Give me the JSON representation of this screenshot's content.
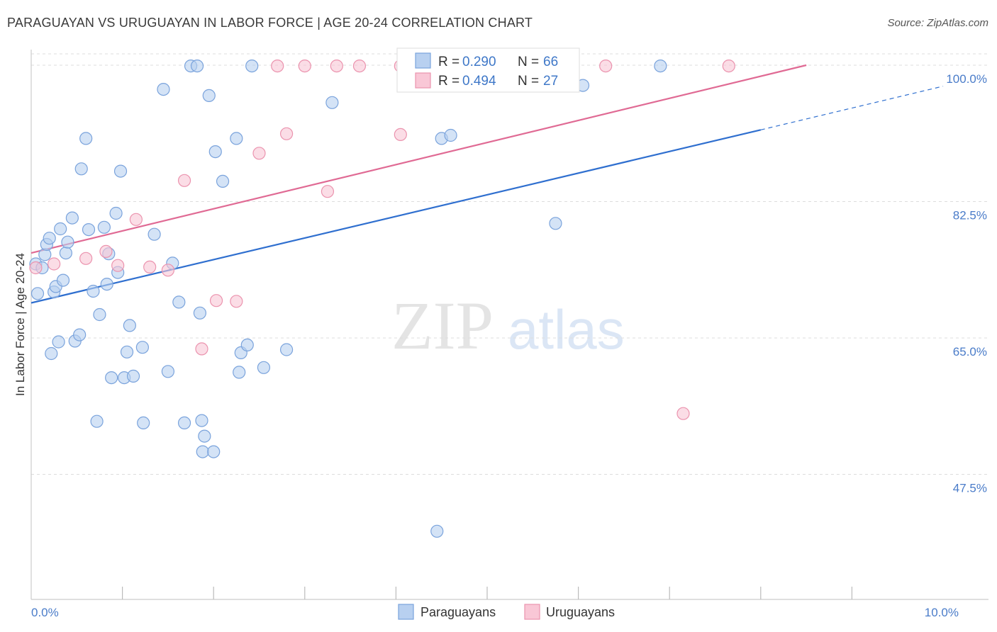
{
  "title": "PARAGUAYAN VS URUGUAYAN IN LABOR FORCE | AGE 20-24 CORRELATION CHART",
  "source": "Source: ZipAtlas.com",
  "watermark": {
    "zip": "ZIP",
    "atlas": "atlas"
  },
  "colors": {
    "blue_fill": "#b8d0f0",
    "blue_stroke": "#7aa3dc",
    "blue_line": "#2f6fcf",
    "pink_fill": "#f9c7d6",
    "pink_stroke": "#eb93ae",
    "pink_line": "#e06a94",
    "grid": "#dddddd",
    "axis_label": "#4a7cc9"
  },
  "legend": {
    "rows": [
      {
        "r_label": "R = ",
        "r_value": "0.290",
        "n_label": "N = ",
        "n_value": "66",
        "series": "Paraguayans"
      },
      {
        "r_label": "R = ",
        "r_value": "0.494",
        "n_label": "N = ",
        "n_value": "27",
        "series": "Uruguayans"
      }
    ]
  },
  "chart_data": {
    "type": "scatter",
    "title": "PARAGUAYAN VS URUGUAYAN IN LABOR FORCE | AGE 20-24 CORRELATION CHART",
    "xlabel": "",
    "ylabel": "In Labor Force | Age 20-24",
    "xlim": [
      0.0,
      10.0
    ],
    "ylim": [
      32.0,
      102.0
    ],
    "x_tick_labels": [
      "0.0%",
      "10.0%"
    ],
    "x_tick_label_values": [
      0.0,
      10.0
    ],
    "y_ticks": [
      47.5,
      65.0,
      82.5,
      100.0
    ],
    "y_tick_labels": [
      "47.5%",
      "65.0%",
      "82.5%",
      "100.0%"
    ],
    "x_minor_ticks": [
      1,
      2,
      3,
      4,
      5,
      6,
      7,
      8,
      9
    ],
    "series": [
      {
        "name": "Paraguayans",
        "color": "blue",
        "trend": {
          "x0": 0.0,
          "y0": 69.5,
          "x1": 8.0,
          "y1": 91.7,
          "dash_x1": 10.0,
          "dash_y1": 97.3
        },
        "points": [
          [
            0.05,
            74.5
          ],
          [
            0.07,
            70.7
          ],
          [
            0.12,
            74.0
          ],
          [
            0.15,
            75.7
          ],
          [
            0.17,
            77.0
          ],
          [
            0.2,
            77.8
          ],
          [
            0.22,
            63.0
          ],
          [
            0.25,
            70.9
          ],
          [
            0.27,
            71.6
          ],
          [
            0.3,
            64.5
          ],
          [
            0.32,
            79.0
          ],
          [
            0.35,
            72.4
          ],
          [
            0.38,
            75.9
          ],
          [
            0.4,
            77.3
          ],
          [
            0.45,
            80.4
          ],
          [
            0.48,
            64.6
          ],
          [
            0.53,
            65.4
          ],
          [
            0.55,
            86.7
          ],
          [
            0.6,
            90.6
          ],
          [
            0.63,
            78.9
          ],
          [
            0.68,
            71.0
          ],
          [
            0.72,
            54.3
          ],
          [
            0.75,
            68.0
          ],
          [
            0.8,
            79.2
          ],
          [
            0.83,
            71.9
          ],
          [
            0.85,
            75.8
          ],
          [
            0.88,
            59.9
          ],
          [
            0.93,
            81.0
          ],
          [
            0.95,
            73.4
          ],
          [
            0.98,
            86.4
          ],
          [
            1.02,
            59.9
          ],
          [
            1.05,
            63.2
          ],
          [
            1.08,
            66.6
          ],
          [
            1.12,
            60.1
          ],
          [
            1.22,
            63.8
          ],
          [
            1.23,
            54.1
          ],
          [
            1.35,
            78.3
          ],
          [
            1.45,
            96.9
          ],
          [
            1.5,
            60.7
          ],
          [
            1.55,
            74.6
          ],
          [
            1.62,
            69.6
          ],
          [
            1.68,
            54.1
          ],
          [
            1.75,
            99.9
          ],
          [
            1.85,
            68.2
          ],
          [
            1.87,
            54.4
          ],
          [
            1.9,
            52.4
          ],
          [
            1.95,
            96.1
          ],
          [
            1.88,
            50.4
          ],
          [
            2.0,
            50.4
          ],
          [
            2.02,
            88.9
          ],
          [
            2.1,
            85.1
          ],
          [
            2.25,
            90.6
          ],
          [
            2.28,
            60.6
          ],
          [
            2.3,
            63.1
          ],
          [
            2.37,
            64.1
          ],
          [
            2.42,
            99.9
          ],
          [
            2.55,
            61.2
          ],
          [
            2.8,
            63.5
          ],
          [
            3.3,
            95.2
          ],
          [
            4.45,
            40.2
          ],
          [
            4.5,
            90.6
          ],
          [
            4.6,
            91.0
          ],
          [
            5.75,
            79.7
          ],
          [
            6.05,
            97.4
          ],
          [
            6.9,
            99.9
          ],
          [
            1.82,
            99.9
          ]
        ]
      },
      {
        "name": "Uruguayans",
        "color": "pink",
        "trend": {
          "x0": 0.0,
          "y0": 75.9,
          "x1": 8.5,
          "y1": 100.0
        },
        "points": [
          [
            0.05,
            74.0
          ],
          [
            0.25,
            74.5
          ],
          [
            0.6,
            75.2
          ],
          [
            0.82,
            76.1
          ],
          [
            0.95,
            74.3
          ],
          [
            1.15,
            80.2
          ],
          [
            1.3,
            74.1
          ],
          [
            1.5,
            73.7
          ],
          [
            1.68,
            85.2
          ],
          [
            1.87,
            63.6
          ],
          [
            2.03,
            69.8
          ],
          [
            2.25,
            69.7
          ],
          [
            2.5,
            88.7
          ],
          [
            2.7,
            99.9
          ],
          [
            2.8,
            91.2
          ],
          [
            3.0,
            99.9
          ],
          [
            3.25,
            83.8
          ],
          [
            3.35,
            99.9
          ],
          [
            3.6,
            99.9
          ],
          [
            4.05,
            99.9
          ],
          [
            4.05,
            91.1
          ],
          [
            4.3,
            99.9
          ],
          [
            4.35,
            99.9
          ],
          [
            5.75,
            99.9
          ],
          [
            6.3,
            99.9
          ],
          [
            7.15,
            55.3
          ],
          [
            7.65,
            99.9
          ]
        ]
      }
    ],
    "legend_entries": [
      "Paraguayans",
      "Uruguayans"
    ]
  }
}
